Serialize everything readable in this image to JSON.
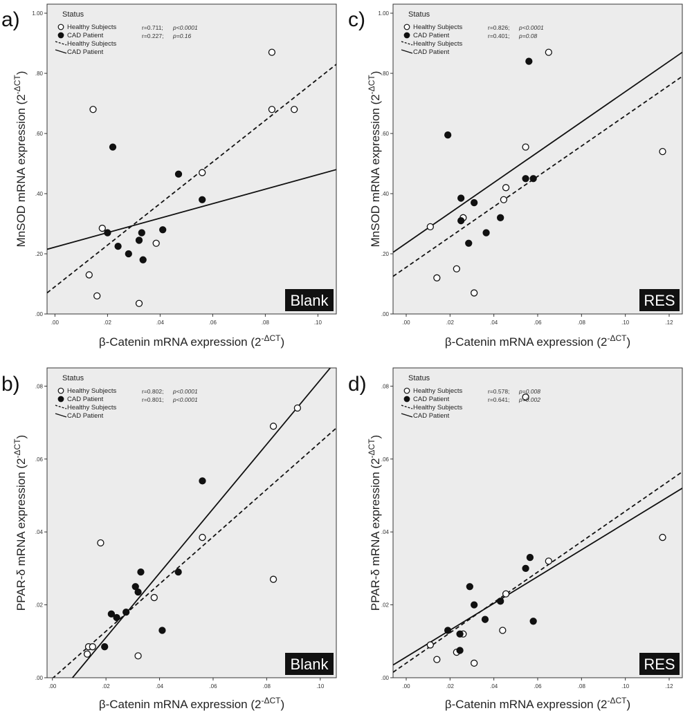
{
  "colors": {
    "plot_bg": "#ececec",
    "frame": "#333333",
    "healthy_fill": "#ffffff",
    "cad_fill": "#111111",
    "line": "#111111",
    "badge_bg": "#111111"
  },
  "chart_data": [
    {
      "type": "scatter",
      "panel": "a)",
      "badge": "Blank",
      "xlabel": "β-Catenin mRNA expression (2",
      "ylabel": "MnSOD mRNA expression (2",
      "label_sup": "-ΔCT",
      "label_close": ")",
      "xlim": [
        -0.003,
        0.107
      ],
      "ylim": [
        0.0,
        1.03
      ],
      "xticks": [
        0.0,
        0.02,
        0.04,
        0.06,
        0.08,
        0.1
      ],
      "xtick_labels": [
        ".00",
        ".02",
        ".04",
        ".06",
        ".08",
        ".10"
      ],
      "yticks": [
        0.0,
        0.2,
        0.4,
        0.6,
        0.8,
        1.0
      ],
      "ytick_labels": [
        ".00",
        ".20",
        ".40",
        ".60",
        ".80",
        "1.00"
      ],
      "legend": {
        "title": "Status",
        "entries": [
          "Healthy Subjects",
          "CAD Patient",
          "Healthy Subjects",
          "CAD Patient"
        ],
        "placement": "top-left"
      },
      "stats": [
        "r=0.711;",
        "p<0.0001",
        "r=0.227;",
        "p=0.16"
      ],
      "series": [
        {
          "name": "Healthy Subjects",
          "marker": "open-circle",
          "points": [
            [
              0.0145,
              0.68
            ],
            [
              0.0825,
              0.87
            ],
            [
              0.0825,
              0.68
            ],
            [
              0.091,
              0.68
            ],
            [
              0.056,
              0.47
            ],
            [
              0.018,
              0.285
            ],
            [
              0.0385,
              0.235
            ],
            [
              0.013,
              0.13
            ],
            [
              0.016,
              0.06
            ],
            [
              0.032,
              0.035
            ]
          ],
          "fit_line": [
            [
              -0.003,
              0.07
            ],
            [
              0.107,
              0.83
            ]
          ],
          "line_style": "dashed"
        },
        {
          "name": "CAD Patient",
          "marker": "filled-circle",
          "points": [
            [
              0.022,
              0.555
            ],
            [
              0.047,
              0.465
            ],
            [
              0.056,
              0.38
            ],
            [
              0.02,
              0.27
            ],
            [
              0.033,
              0.27
            ],
            [
              0.041,
              0.28
            ],
            [
              0.024,
              0.225
            ],
            [
              0.032,
              0.245
            ],
            [
              0.028,
              0.2
            ],
            [
              0.0335,
              0.18
            ]
          ],
          "fit_line": [
            [
              -0.003,
              0.215
            ],
            [
              0.107,
              0.48
            ]
          ],
          "line_style": "solid"
        }
      ]
    },
    {
      "type": "scatter",
      "panel": "c)",
      "badge": "RES",
      "xlabel": "β-Catenin mRNA expression (2",
      "ylabel": "MnSOD mRNA expression (2",
      "label_sup": "-ΔCT",
      "label_close": ")",
      "xlim": [
        -0.006,
        0.126
      ],
      "ylim": [
        0.0,
        1.03
      ],
      "xticks": [
        0.0,
        0.02,
        0.04,
        0.06,
        0.08,
        0.1,
        0.12
      ],
      "xtick_labels": [
        ".00",
        ".02",
        ".04",
        ".06",
        ".08",
        ".10",
        ".12"
      ],
      "yticks": [
        0.0,
        0.2,
        0.4,
        0.6,
        0.8,
        1.0
      ],
      "ytick_labels": [
        ".00",
        ".20",
        ".40",
        ".60",
        ".80",
        "1.00"
      ],
      "legend": {
        "title": "Status",
        "entries": [
          "Healthy Subjects",
          "CAD Patient",
          "Healthy Subjects",
          "CAD Patient"
        ],
        "placement": "top-left"
      },
      "stats": [
        "r=0.826;",
        "p<0.0001",
        "r=0.401;",
        "p=0.08"
      ],
      "series": [
        {
          "name": "Healthy Subjects",
          "marker": "open-circle",
          "points": [
            [
              0.065,
              0.87
            ],
            [
              0.117,
              0.54
            ],
            [
              0.0545,
              0.555
            ],
            [
              0.0455,
              0.42
            ],
            [
              0.0445,
              0.38
            ],
            [
              0.026,
              0.32
            ],
            [
              0.011,
              0.29
            ],
            [
              0.023,
              0.15
            ],
            [
              0.014,
              0.12
            ],
            [
              0.031,
              0.07
            ]
          ],
          "fit_line": [
            [
              -0.006,
              0.125
            ],
            [
              0.126,
              0.79
            ]
          ],
          "line_style": "dashed"
        },
        {
          "name": "CAD Patient",
          "marker": "filled-circle",
          "points": [
            [
              0.056,
              0.84
            ],
            [
              0.019,
              0.595
            ],
            [
              0.0545,
              0.45
            ],
            [
              0.058,
              0.45
            ],
            [
              0.025,
              0.385
            ],
            [
              0.031,
              0.37
            ],
            [
              0.043,
              0.32
            ],
            [
              0.025,
              0.31
            ],
            [
              0.0365,
              0.27
            ],
            [
              0.0285,
              0.235
            ]
          ],
          "fit_line": [
            [
              -0.006,
              0.205
            ],
            [
              0.126,
              0.87
            ]
          ],
          "line_style": "solid"
        }
      ]
    },
    {
      "type": "scatter",
      "panel": "b)",
      "badge": "Blank",
      "xlabel": "β-Catenin mRNA expression (2",
      "ylabel": "PPAR-δ mRNA expression (2",
      "label_sup": "-ΔCT",
      "label_close": ")",
      "xlim": [
        -0.002,
        0.106
      ],
      "ylim": [
        0.0,
        0.085
      ],
      "xticks": [
        0.0,
        0.02,
        0.04,
        0.06,
        0.08,
        0.1
      ],
      "xtick_labels": [
        ".00",
        ".02",
        ".04",
        ".06",
        ".08",
        ".10"
      ],
      "yticks": [
        0.0,
        0.02,
        0.04,
        0.06,
        0.08
      ],
      "ytick_labels": [
        ".00",
        ".02",
        ".04",
        ".06",
        ".08"
      ],
      "legend": {
        "title": "Status",
        "entries": [
          "Healthy Subjects",
          "CAD Patient",
          "Healthy Subjects",
          "CAD Patient"
        ],
        "placement": "top-left"
      },
      "stats": [
        "r=0.802;",
        "p<0.0001",
        "r=0.801;",
        "p<0.0001"
      ],
      "series": [
        {
          "name": "Healthy Subjects",
          "marker": "open-circle",
          "points": [
            [
              0.0915,
              0.074
            ],
            [
              0.0825,
              0.069
            ],
            [
              0.056,
              0.0385
            ],
            [
              0.018,
              0.037
            ],
            [
              0.0825,
              0.027
            ],
            [
              0.038,
              0.022
            ],
            [
              0.0135,
              0.0085
            ],
            [
              0.015,
              0.0085
            ],
            [
              0.013,
              0.0065
            ],
            [
              0.032,
              0.006
            ]
          ],
          "fit_line": [
            [
              -0.002,
              -0.0015
            ],
            [
              0.106,
              0.0685
            ]
          ],
          "line_style": "dashed"
        },
        {
          "name": "CAD Patient",
          "marker": "filled-circle",
          "points": [
            [
              0.056,
              0.054
            ],
            [
              0.033,
              0.029
            ],
            [
              0.047,
              0.029
            ],
            [
              0.031,
              0.025
            ],
            [
              0.032,
              0.0235
            ],
            [
              0.022,
              0.0175
            ],
            [
              0.024,
              0.0165
            ],
            [
              0.0275,
              0.018
            ],
            [
              0.041,
              0.013
            ],
            [
              0.0195,
              0.0085
            ]
          ],
          "fit_line": [
            [
              0.0075,
              0.0
            ],
            [
              0.106,
              0.087
            ]
          ],
          "line_style": "solid"
        }
      ]
    },
    {
      "type": "scatter",
      "panel": "d)",
      "badge": "RES",
      "xlabel": "β-Catenin mRNA expression (2",
      "ylabel": "PPAR-δ mRNA expression (2",
      "label_sup": "-ΔCT",
      "label_close": ")",
      "xlim": [
        -0.006,
        0.126
      ],
      "ylim": [
        0.0,
        0.085
      ],
      "xticks": [
        0.0,
        0.02,
        0.04,
        0.06,
        0.08,
        0.1,
        0.12
      ],
      "xtick_labels": [
        ".00",
        ".02",
        ".04",
        ".06",
        ".08",
        ".10",
        ".12"
      ],
      "yticks": [
        0.0,
        0.02,
        0.04,
        0.06,
        0.08
      ],
      "ytick_labels": [
        ".00",
        ".02",
        ".04",
        ".06",
        ".08"
      ],
      "legend": {
        "title": "Status",
        "entries": [
          "Healthy Subjects",
          "CAD Patient",
          "Healthy Subjects",
          "CAD Patient"
        ],
        "placement": "top-left"
      },
      "stats": [
        "r=0.578;",
        "p=0.008",
        "r=0.641;",
        "p=0.002"
      ],
      "series": [
        {
          "name": "Healthy Subjects",
          "marker": "open-circle",
          "points": [
            [
              0.0545,
              0.077
            ],
            [
              0.117,
              0.0385
            ],
            [
              0.065,
              0.032
            ],
            [
              0.0455,
              0.023
            ],
            [
              0.044,
              0.013
            ],
            [
              0.026,
              0.012
            ],
            [
              0.023,
              0.007
            ],
            [
              0.011,
              0.009
            ],
            [
              0.014,
              0.005
            ],
            [
              0.031,
              0.004
            ]
          ],
          "fit_line": [
            [
              -0.006,
              0.0015
            ],
            [
              0.126,
              0.0565
            ]
          ],
          "line_style": "dashed"
        },
        {
          "name": "CAD Patient",
          "marker": "filled-circle",
          "points": [
            [
              0.0565,
              0.033
            ],
            [
              0.0545,
              0.03
            ],
            [
              0.029,
              0.025
            ],
            [
              0.043,
              0.021
            ],
            [
              0.031,
              0.02
            ],
            [
              0.036,
              0.016
            ],
            [
              0.058,
              0.0155
            ],
            [
              0.019,
              0.013
            ],
            [
              0.0245,
              0.012
            ],
            [
              0.0245,
              0.0075
            ]
          ],
          "fit_line": [
            [
              -0.006,
              0.0035
            ],
            [
              0.126,
              0.052
            ]
          ],
          "line_style": "solid"
        }
      ]
    }
  ]
}
